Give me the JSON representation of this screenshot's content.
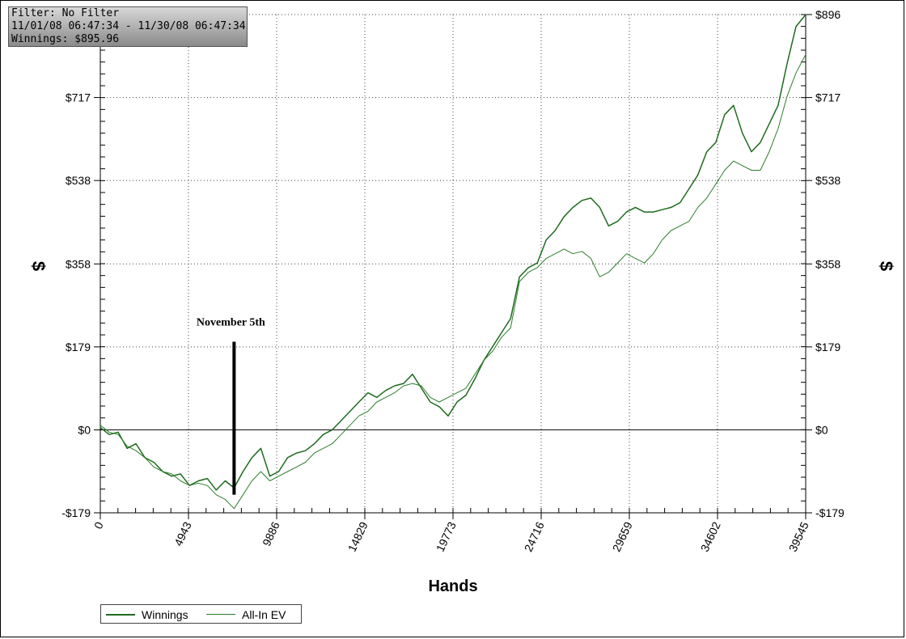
{
  "filter_box": {
    "line1": "Filter: No Filter",
    "line2": "11/01/08 06:47:34 - 11/30/08 06:47:34",
    "line3": "Winnings: $895.96"
  },
  "legend": [
    {
      "label": "Winnings",
      "color": "#1e6b1e"
    },
    {
      "label": "All-In EV",
      "color": "#2e7d2e"
    }
  ],
  "chart_data": {
    "type": "line",
    "title": "",
    "xlabel": "Hands",
    "ylabel_left": "$",
    "ylabel_right": "$",
    "xlim": [
      0,
      39545
    ],
    "ylim": [
      -179,
      896
    ],
    "xticks": [
      0,
      4943,
      9886,
      14829,
      19773,
      24716,
      29659,
      34602,
      39545
    ],
    "xtick_labels": [
      "0",
      "4943",
      "9886",
      "14829",
      "19773",
      "24716",
      "29659",
      "34602",
      "39545"
    ],
    "yticks": [
      -179,
      0,
      179,
      358,
      538,
      717,
      896
    ],
    "ytick_labels": [
      "-$179",
      "$0",
      "$179",
      "$358",
      "$538",
      "$717",
      "$896"
    ],
    "grid": true,
    "annotation": {
      "text": "November 5th",
      "x": 7500,
      "y_from": -140,
      "y_to": 190
    },
    "series": [
      {
        "name": "Winnings",
        "color": "#1e6b1e",
        "width": 1.5,
        "points": [
          [
            0,
            5
          ],
          [
            500,
            -10
          ],
          [
            1000,
            -5
          ],
          [
            1500,
            -40
          ],
          [
            2000,
            -30
          ],
          [
            2500,
            -60
          ],
          [
            3000,
            -70
          ],
          [
            3500,
            -90
          ],
          [
            4000,
            -100
          ],
          [
            4500,
            -95
          ],
          [
            5000,
            -120
          ],
          [
            5500,
            -110
          ],
          [
            6000,
            -105
          ],
          [
            6500,
            -130
          ],
          [
            7000,
            -110
          ],
          [
            7500,
            -125
          ],
          [
            8000,
            -90
          ],
          [
            8500,
            -60
          ],
          [
            9000,
            -40
          ],
          [
            9500,
            -100
          ],
          [
            10000,
            -90
          ],
          [
            10500,
            -60
          ],
          [
            11000,
            -50
          ],
          [
            11500,
            -45
          ],
          [
            12000,
            -30
          ],
          [
            12500,
            -10
          ],
          [
            13000,
            0
          ],
          [
            13500,
            20
          ],
          [
            14000,
            40
          ],
          [
            14500,
            60
          ],
          [
            15000,
            80
          ],
          [
            15500,
            70
          ],
          [
            16000,
            85
          ],
          [
            16500,
            95
          ],
          [
            17000,
            100
          ],
          [
            17500,
            120
          ],
          [
            18000,
            90
          ],
          [
            18500,
            60
          ],
          [
            19000,
            50
          ],
          [
            19500,
            30
          ],
          [
            20000,
            60
          ],
          [
            20500,
            75
          ],
          [
            21000,
            110
          ],
          [
            21500,
            150
          ],
          [
            22000,
            180
          ],
          [
            22500,
            210
          ],
          [
            23000,
            240
          ],
          [
            23500,
            330
          ],
          [
            24000,
            350
          ],
          [
            24500,
            360
          ],
          [
            25000,
            410
          ],
          [
            25500,
            430
          ],
          [
            26000,
            460
          ],
          [
            26500,
            480
          ],
          [
            27000,
            495
          ],
          [
            27500,
            500
          ],
          [
            28000,
            480
          ],
          [
            28500,
            440
          ],
          [
            29000,
            450
          ],
          [
            29500,
            470
          ],
          [
            30000,
            480
          ],
          [
            30500,
            470
          ],
          [
            31000,
            470
          ],
          [
            31500,
            475
          ],
          [
            32000,
            480
          ],
          [
            32500,
            490
          ],
          [
            33000,
            520
          ],
          [
            33500,
            550
          ],
          [
            34000,
            600
          ],
          [
            34500,
            620
          ],
          [
            35000,
            680
          ],
          [
            35500,
            700
          ],
          [
            36000,
            640
          ],
          [
            36500,
            600
          ],
          [
            37000,
            620
          ],
          [
            37500,
            660
          ],
          [
            38000,
            700
          ],
          [
            38500,
            790
          ],
          [
            39000,
            870
          ],
          [
            39545,
            896
          ]
        ]
      },
      {
        "name": "All-In EV",
        "color": "#2e7d2e",
        "width": 1,
        "points": [
          [
            0,
            10
          ],
          [
            500,
            -5
          ],
          [
            1000,
            -10
          ],
          [
            1500,
            -35
          ],
          [
            2000,
            -45
          ],
          [
            2500,
            -60
          ],
          [
            3000,
            -80
          ],
          [
            3500,
            -90
          ],
          [
            4000,
            -95
          ],
          [
            4500,
            -110
          ],
          [
            5000,
            -120
          ],
          [
            5500,
            -115
          ],
          [
            6000,
            -120
          ],
          [
            6500,
            -140
          ],
          [
            7000,
            -150
          ],
          [
            7500,
            -170
          ],
          [
            8000,
            -140
          ],
          [
            8500,
            -110
          ],
          [
            9000,
            -90
          ],
          [
            9500,
            -110
          ],
          [
            10000,
            -100
          ],
          [
            10500,
            -90
          ],
          [
            11000,
            -80
          ],
          [
            11500,
            -70
          ],
          [
            12000,
            -50
          ],
          [
            12500,
            -40
          ],
          [
            13000,
            -30
          ],
          [
            13500,
            -10
          ],
          [
            14000,
            10
          ],
          [
            14500,
            30
          ],
          [
            15000,
            40
          ],
          [
            15500,
            60
          ],
          [
            16000,
            70
          ],
          [
            16500,
            80
          ],
          [
            17000,
            95
          ],
          [
            17500,
            100
          ],
          [
            18000,
            95
          ],
          [
            18500,
            70
          ],
          [
            19000,
            60
          ],
          [
            19500,
            70
          ],
          [
            20000,
            80
          ],
          [
            20500,
            90
          ],
          [
            21000,
            120
          ],
          [
            21500,
            150
          ],
          [
            22000,
            170
          ],
          [
            22500,
            200
          ],
          [
            23000,
            220
          ],
          [
            23500,
            320
          ],
          [
            24000,
            340
          ],
          [
            24500,
            350
          ],
          [
            25000,
            370
          ],
          [
            25500,
            380
          ],
          [
            26000,
            390
          ],
          [
            26500,
            380
          ],
          [
            27000,
            385
          ],
          [
            27500,
            370
          ],
          [
            28000,
            330
          ],
          [
            28500,
            340
          ],
          [
            29000,
            360
          ],
          [
            29500,
            380
          ],
          [
            30000,
            370
          ],
          [
            30500,
            360
          ],
          [
            31000,
            380
          ],
          [
            31500,
            410
          ],
          [
            32000,
            430
          ],
          [
            32500,
            440
          ],
          [
            33000,
            450
          ],
          [
            33500,
            480
          ],
          [
            34000,
            500
          ],
          [
            34500,
            530
          ],
          [
            35000,
            560
          ],
          [
            35500,
            580
          ],
          [
            36000,
            570
          ],
          [
            36500,
            560
          ],
          [
            37000,
            560
          ],
          [
            37500,
            600
          ],
          [
            38000,
            650
          ],
          [
            38500,
            720
          ],
          [
            39000,
            770
          ],
          [
            39545,
            810
          ]
        ]
      }
    ]
  }
}
